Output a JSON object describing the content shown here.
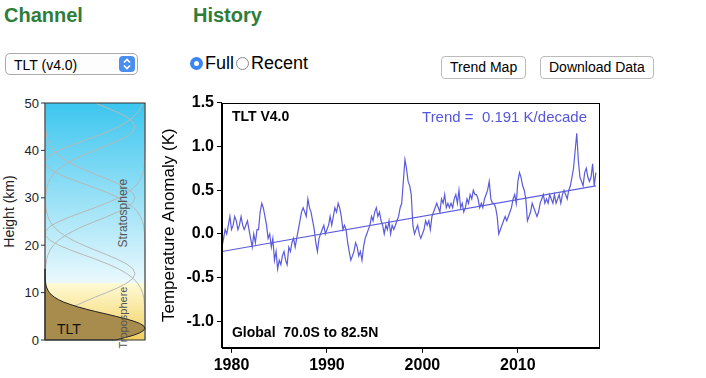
{
  "header": {
    "channel_heading": "Channel",
    "history_heading": "History",
    "channel_select": "TLT (v4.0)",
    "history_options": [
      "Full",
      "Recent"
    ],
    "history_selected": "Full",
    "buttons": [
      "Trend Map",
      "Download Data"
    ]
  },
  "weighting_diagram": {
    "ylabel": "Height (km)",
    "ylim": [
      0,
      50
    ],
    "yticks": [
      0,
      10,
      20,
      30,
      40,
      50
    ],
    "layers": [
      "Troposphere",
      "Stratosphere"
    ],
    "channel_label": "TLT"
  },
  "chart_data": {
    "type": "line",
    "title": "TLT V4.0",
    "annotations": [
      {
        "text": "Trend =  0.191 K/decade",
        "color": "#5555dd"
      },
      {
        "text": "Global  70.0S to 82.5N",
        "color": "#000000"
      }
    ],
    "ylabel": "Temperature Anomaly (K)",
    "xlim": [
      1979,
      2018.5
    ],
    "xticks": [
      1980,
      1990,
      2000,
      2010
    ],
    "ylim": [
      -1.3,
      1.5
    ],
    "yticks": [
      {
        "value": -1,
        "label": "-1.0"
      },
      -0.5,
      {
        "value": 0,
        "label": "0.0"
      },
      0.5,
      {
        "value": 1,
        "label": "1.0"
      },
      1.5
    ],
    "grid": false,
    "series": [
      {
        "color": "#5b5bdc",
        "x": [
          1979,
          1979.17,
          1979.33,
          1979.5,
          1979.67,
          1979.83,
          1980,
          1980.17,
          1980.33,
          1980.5,
          1980.67,
          1980.83,
          1981,
          1981.17,
          1981.33,
          1981.5,
          1981.67,
          1981.83,
          1982,
          1982.17,
          1982.33,
          1982.5,
          1982.67,
          1982.83,
          1983,
          1983.17,
          1983.33,
          1983.5,
          1983.67,
          1983.83,
          1984,
          1984.17,
          1984.33,
          1984.5,
          1984.67,
          1984.83,
          1985,
          1985.17,
          1985.33,
          1985.5,
          1985.67,
          1985.83,
          1986,
          1986.17,
          1986.33,
          1986.5,
          1986.67,
          1986.83,
          1987,
          1987.17,
          1987.33,
          1987.5,
          1987.67,
          1987.83,
          1988,
          1988.17,
          1988.33,
          1988.5,
          1988.67,
          1988.83,
          1989,
          1989.17,
          1989.33,
          1989.5,
          1989.67,
          1989.83,
          1990,
          1990.17,
          1990.33,
          1990.5,
          1990.67,
          1990.83,
          1991,
          1991.17,
          1991.33,
          1991.5,
          1991.67,
          1991.83,
          1992,
          1992.17,
          1992.33,
          1992.5,
          1992.67,
          1992.83,
          1993,
          1993.17,
          1993.33,
          1993.5,
          1993.67,
          1993.83,
          1994,
          1994.17,
          1994.33,
          1994.5,
          1994.67,
          1994.83,
          1995,
          1995.17,
          1995.33,
          1995.5,
          1995.67,
          1995.83,
          1996,
          1996.17,
          1996.33,
          1996.5,
          1996.67,
          1996.83,
          1997,
          1997.17,
          1997.33,
          1997.5,
          1997.67,
          1997.83,
          1998,
          1998.17,
          1998.33,
          1998.5,
          1998.67,
          1998.83,
          1999,
          1999.17,
          1999.33,
          1999.5,
          1999.67,
          1999.83,
          2000,
          2000.17,
          2000.33,
          2000.5,
          2000.67,
          2000.83,
          2001,
          2001.17,
          2001.33,
          2001.5,
          2001.67,
          2001.83,
          2002,
          2002.17,
          2002.33,
          2002.5,
          2002.67,
          2002.83,
          2003,
          2003.17,
          2003.33,
          2003.5,
          2003.67,
          2003.83,
          2004,
          2004.17,
          2004.33,
          2004.5,
          2004.67,
          2004.83,
          2005,
          2005.17,
          2005.33,
          2005.5,
          2005.67,
          2005.83,
          2006,
          2006.17,
          2006.33,
          2006.5,
          2006.67,
          2006.83,
          2007,
          2007.17,
          2007.33,
          2007.5,
          2007.67,
          2007.83,
          2008,
          2008.17,
          2008.33,
          2008.5,
          2008.67,
          2008.83,
          2009,
          2009.17,
          2009.33,
          2009.5,
          2009.67,
          2009.83,
          2010,
          2010.17,
          2010.33,
          2010.5,
          2010.67,
          2010.83,
          2011,
          2011.17,
          2011.33,
          2011.5,
          2011.67,
          2011.83,
          2012,
          2012.17,
          2012.33,
          2012.5,
          2012.67,
          2012.83,
          2013,
          2013.17,
          2013.33,
          2013.5,
          2013.67,
          2013.83,
          2014,
          2014.17,
          2014.33,
          2014.5,
          2014.67,
          2014.83,
          2015,
          2015.17,
          2015.33,
          2015.5,
          2015.67,
          2015.83,
          2016,
          2016.17,
          2016.33,
          2016.5,
          2016.67,
          2016.83,
          2017,
          2017.17,
          2017.33,
          2017.5,
          2017.67,
          2017.83,
          2018,
          2018.17
        ],
        "values": [
          -0.15,
          -0.05,
          0.05,
          0,
          0.1,
          0.2,
          0.05,
          0.1,
          0.2,
          0.15,
          0.05,
          0.1,
          0.2,
          0.1,
          0.05,
          0.1,
          0.15,
          0.05,
          -0.05,
          -0.15,
          0,
          -0.1,
          0.05,
          0.05,
          0.25,
          0.35,
          0.3,
          0.2,
          0.1,
          -0.05,
          0,
          -0.15,
          -0.05,
          -0.3,
          -0.2,
          -0.4,
          -0.3,
          -0.35,
          -0.25,
          -0.2,
          -0.3,
          -0.35,
          -0.15,
          -0.2,
          -0.1,
          -0.05,
          -0.15,
          -0.05,
          0.05,
          0.15,
          0.25,
          0.3,
          0.25,
          0.2,
          0.4,
          0.3,
          0.25,
          0.15,
          0.05,
          -0.1,
          -0.2,
          -0.05,
          0,
          0.05,
          0.1,
          0,
          0.05,
          0.1,
          0.2,
          0.1,
          0.2,
          0.3,
          0.25,
          0.35,
          0.3,
          0.2,
          0.05,
          0.1,
          0.05,
          -0.1,
          -0.2,
          -0.3,
          -0.25,
          -0.2,
          -0.1,
          -0.15,
          -0.25,
          -0.2,
          -0.3,
          -0.15,
          -0.05,
          0,
          0.05,
          0.1,
          0.2,
          0.15,
          0.25,
          0.3,
          0.2,
          0.25,
          0.15,
          0.1,
          0,
          0.1,
          0.05,
          0.15,
          0,
          0.1,
          0.05,
          0.1,
          0.15,
          0.2,
          0.3,
          0.35,
          0.6,
          0.85,
          0.75,
          0.6,
          0.55,
          0.45,
          0.1,
          0,
          0.05,
          0.1,
          0,
          -0.05,
          0,
          0.05,
          0.15,
          0.1,
          0.15,
          0.05,
          0.2,
          0.25,
          0.3,
          0.35,
          0.3,
          0.25,
          0.4,
          0.35,
          0.45,
          0.3,
          0.35,
          0.3,
          0.35,
          0.3,
          0.4,
          0.45,
          0.35,
          0.5,
          0.3,
          0.35,
          0.25,
          0.3,
          0.4,
          0.35,
          0.45,
          0.4,
          0.5,
          0.45,
          0.45,
          0.4,
          0.3,
          0.35,
          0.3,
          0.4,
          0.45,
          0.5,
          0.6,
          0.4,
          0.35,
          0.35,
          0.3,
          0.2,
          0,
          0.05,
          0.1,
          0.15,
          0.2,
          0.15,
          0.2,
          0.25,
          0.3,
          0.4,
          0.45,
          0.35,
          0.6,
          0.7,
          0.65,
          0.55,
          0.5,
          0.4,
          0.15,
          0.2,
          0.25,
          0.35,
          0.3,
          0.25,
          0.2,
          0.25,
          0.35,
          0.4,
          0.45,
          0.35,
          0.4,
          0.35,
          0.45,
          0.4,
          0.35,
          0.45,
          0.35,
          0.4,
          0.45,
          0.35,
          0.45,
          0.5,
          0.45,
          0.4,
          0.5,
          0.55,
          0.65,
          0.75,
          0.95,
          1.15,
          0.85,
          0.65,
          0.6,
          0.55,
          0.7,
          0.75,
          0.65,
          0.6,
          0.65,
          0.8,
          0.55,
          0.7
        ]
      },
      {
        "color": "#5b5bdc",
        "x": [
          1979,
          2018.17
        ],
        "values": [
          -0.2,
          0.55
        ]
      }
    ]
  }
}
